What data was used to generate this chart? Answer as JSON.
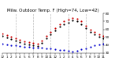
{
  "title": "Milw. Outdoor Temp. F (High=74, Low=42)",
  "bg_color": "#ffffff",
  "plot_bg": "#ffffff",
  "grid_color": "#bbbbbb",
  "temp_color": "#cc0000",
  "dew_color": "#0000cc",
  "apparent_color": "#000000",
  "hours": [
    0,
    1,
    2,
    3,
    4,
    5,
    6,
    7,
    8,
    9,
    10,
    11,
    12,
    13,
    14,
    15,
    16,
    17,
    18,
    19,
    20,
    21,
    22,
    23
  ],
  "temp": [
    55,
    53,
    51,
    49,
    47,
    45,
    44,
    43,
    42,
    46,
    52,
    57,
    62,
    67,
    70,
    72,
    74,
    73,
    70,
    65,
    60,
    57,
    54,
    52
  ],
  "dew": [
    42,
    41,
    40,
    40,
    39,
    38,
    38,
    37,
    37,
    37,
    36,
    36,
    35,
    34,
    34,
    33,
    32,
    33,
    35,
    36,
    38,
    40,
    41,
    42
  ],
  "apparent": [
    52,
    50,
    48,
    46,
    44,
    42,
    41,
    40,
    39,
    43,
    49,
    54,
    59,
    64,
    67,
    69,
    71,
    70,
    67,
    62,
    57,
    54,
    51,
    49
  ],
  "xlim": [
    0,
    23
  ],
  "ylim": [
    30,
    80
  ],
  "yticks": [
    30,
    40,
    50,
    60,
    70,
    80
  ],
  "ytick_labels": [
    "30",
    "40",
    "50",
    "60",
    "70",
    "80"
  ],
  "xtick_positions": [
    0,
    1,
    2,
    3,
    4,
    5,
    6,
    7,
    8,
    9,
    10,
    11,
    12,
    13,
    14,
    15,
    16,
    17,
    18,
    19,
    20,
    21,
    22,
    23
  ],
  "xtick_labels": [
    "12",
    "1",
    "2",
    "3",
    "4",
    "5",
    "6",
    "7",
    "8",
    "9",
    "10",
    "11",
    "12",
    "1",
    "2",
    "3",
    "4",
    "5",
    "6",
    "7",
    "8",
    "9",
    "10",
    "11"
  ],
  "vgrid_positions": [
    3,
    7,
    11,
    15,
    19,
    23
  ],
  "marker_size": 2.5,
  "title_fontsize": 4.0,
  "tick_fontsize": 3.0
}
